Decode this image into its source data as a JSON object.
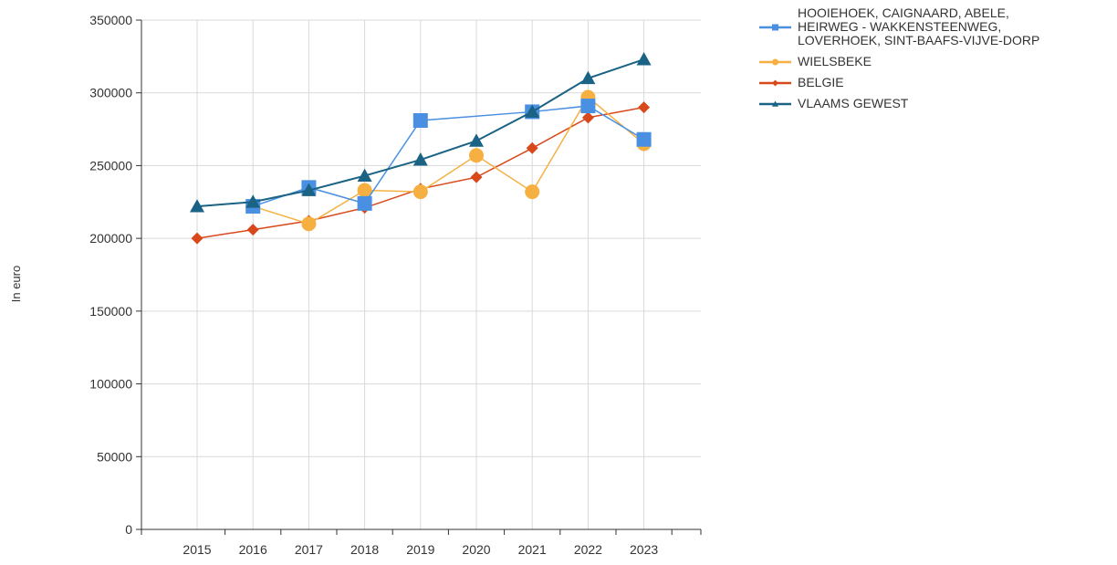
{
  "chart_data": {
    "type": "line",
    "ylabel": "In euro",
    "xlabel": "",
    "title": "",
    "ylim": [
      0,
      350000
    ],
    "yticks": [
      0,
      50000,
      100000,
      150000,
      200000,
      250000,
      300000,
      350000
    ],
    "categories": [
      "2015",
      "2016",
      "2017",
      "2018",
      "2019",
      "2020",
      "2021",
      "2022",
      "2023"
    ],
    "grid": "on",
    "legend_position": "top-right",
    "series": [
      {
        "name": "HOOIEHOEK, CAIGNAARD, ABELE, HEIRWEG - WAKKENSTEENWEG, LOVERHOEK, SINT-BAAFS-VIJVE-DORP",
        "legend_lines": [
          "HOOIEHOEK, CAIGNAARD, ABELE,",
          "HEIRWEG - WAKKENSTEENWEG,",
          "LOVERHOEK, SINT-BAAFS-VIJVE-DORP"
        ],
        "color": "#4a90e2",
        "marker": "square",
        "values": [
          null,
          222000,
          235000,
          224000,
          281000,
          null,
          287000,
          291000,
          268000
        ]
      },
      {
        "name": "WIELSBEKE",
        "legend_lines": [
          "WIELSBEKE"
        ],
        "color": "#f5b041",
        "marker": "circle",
        "values": [
          null,
          222000,
          210000,
          233000,
          232000,
          257000,
          232000,
          297000,
          265000
        ]
      },
      {
        "name": "BELGIE",
        "legend_lines": [
          "BELGIE"
        ],
        "color": "#d9481b",
        "marker": "diamond",
        "values": [
          200000,
          206000,
          212000,
          221000,
          234000,
          242000,
          262000,
          283000,
          290000
        ]
      },
      {
        "name": "VLAAMS GEWEST",
        "legend_lines": [
          "VLAAMS GEWEST"
        ],
        "color": "#1a6384",
        "marker": "triangle",
        "values": [
          222000,
          225000,
          233000,
          243000,
          254000,
          267000,
          287000,
          310000,
          323000
        ]
      }
    ]
  }
}
